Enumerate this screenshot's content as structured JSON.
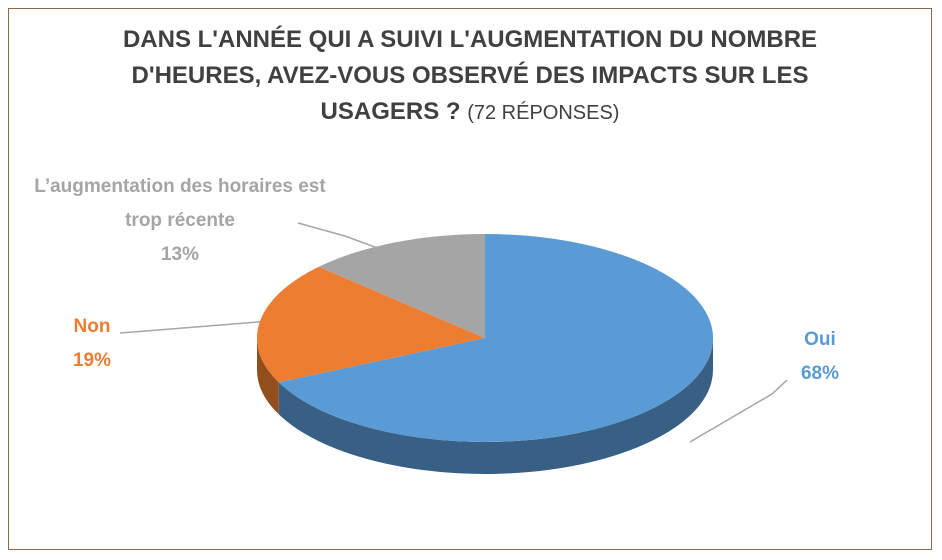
{
  "chart_data": {
    "type": "pie",
    "title": "DANS L'ANNÉE QUI A SUIVI L'AUGMENTATION DU NOMBRE D'HEURES, AVEZ-VOUS OBSERVÉ DES IMPACTS SUR LES USAGERS ?",
    "subtitle": "(72 RÉPONSES)",
    "categories": [
      "Oui",
      "Non",
      "L’augmentation des horaires est trop récente"
    ],
    "values": [
      68,
      19,
      13
    ],
    "value_labels": [
      "68%",
      "19%",
      "13%"
    ],
    "colors": [
      "#5b9bd5",
      "#ed7d31",
      "#a5a5a5"
    ]
  }
}
